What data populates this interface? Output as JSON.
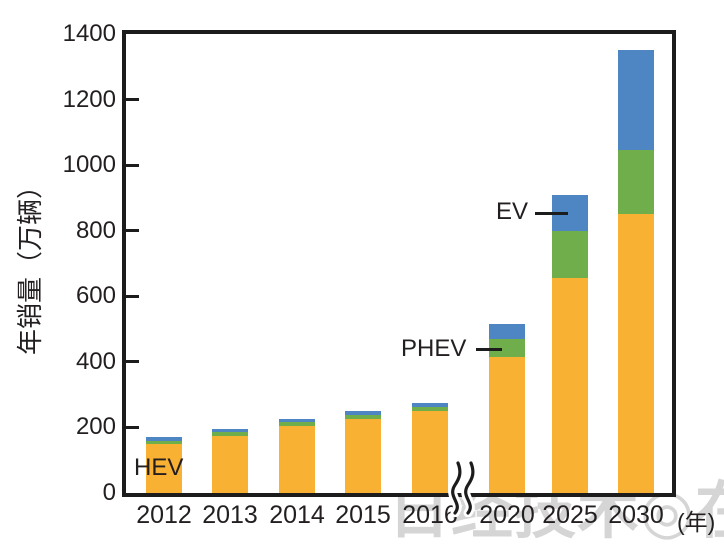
{
  "watermark": {
    "text": "日经技术◎在线!"
  },
  "chart_data": {
    "type": "bar",
    "stacked": true,
    "title": "",
    "ylabel": "年销量（万辆）",
    "xlabel": "(年)",
    "ylim": [
      0,
      1400
    ],
    "yticks": [
      0,
      200,
      400,
      600,
      800,
      1000,
      1200,
      1400
    ],
    "grid": false,
    "legend_position": "inline-callouts",
    "axis_break": {
      "between": [
        "2016",
        "2020"
      ]
    },
    "categories": [
      "2012",
      "2013",
      "2014",
      "2015",
      "2016",
      "2020",
      "2025",
      "2030"
    ],
    "series": [
      {
        "name": "HEV",
        "color": "#F8B133",
        "values": [
          150,
          175,
          205,
          225,
          250,
          415,
          655,
          850
        ]
      },
      {
        "name": "PHEV",
        "color": "#6FAE4B",
        "values": [
          10,
          10,
          12,
          12,
          12,
          55,
          145,
          195
        ]
      },
      {
        "name": "EV",
        "color": "#4E86C4",
        "values": [
          10,
          10,
          8,
          13,
          13,
          45,
          110,
          305
        ]
      }
    ],
    "totals": [
      170,
      195,
      225,
      250,
      275,
      515,
      910,
      1350
    ],
    "frame_color": "#1c1c1c",
    "text_color": "#231f20",
    "watermark_color": "#bbbbbb"
  }
}
